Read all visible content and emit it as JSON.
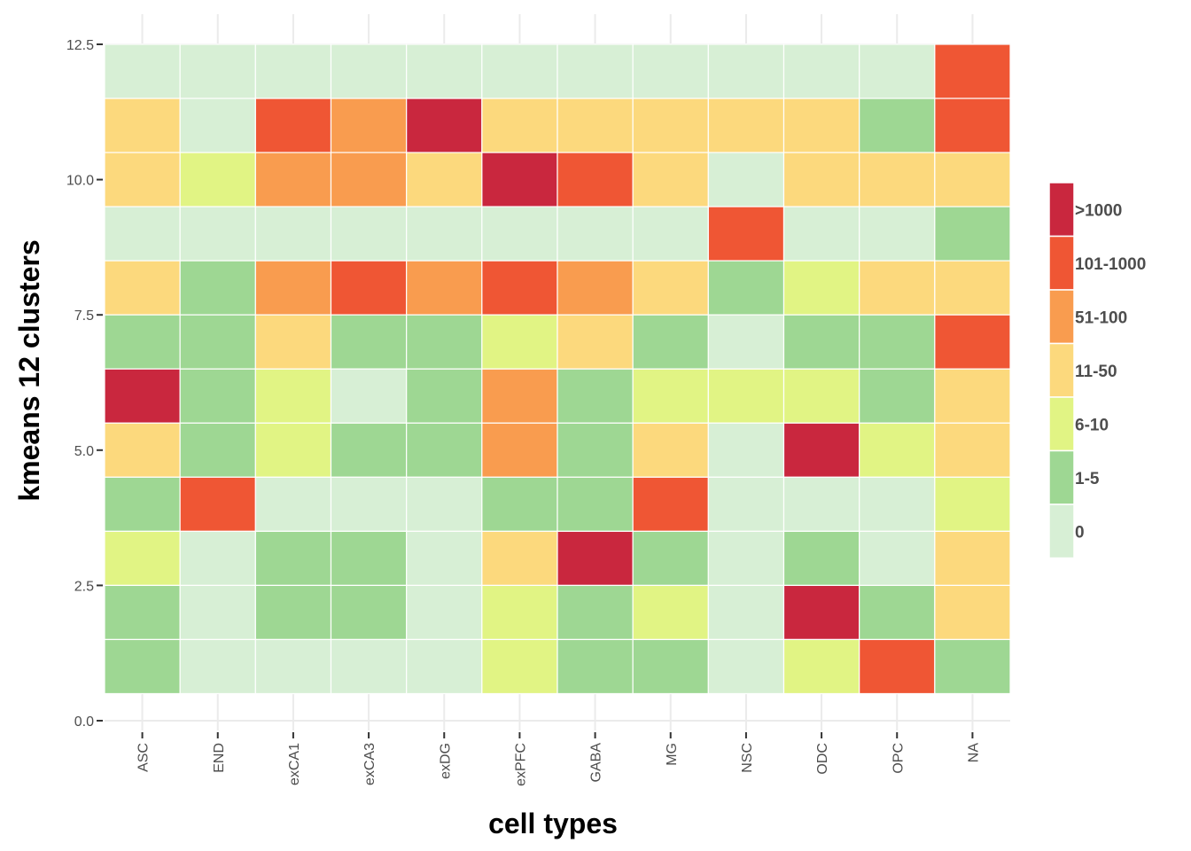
{
  "chart_data": {
    "type": "heatmap",
    "title": "",
    "xlabel": "cell types",
    "ylabel": "kmeans 12 clusters",
    "x_categories": [
      "ASC",
      "END",
      "exCA1",
      "exCA3",
      "exDG",
      "exPFC",
      "GABA",
      "MG",
      "NSC",
      "ODC",
      "OPC",
      "NA"
    ],
    "y_ticks": [
      0.0,
      2.5,
      5.0,
      7.5,
      10.0,
      12.5
    ],
    "y_tick_labels": [
      "0.0",
      "2.5",
      "5.0",
      "7.5",
      "10.0",
      "12.5"
    ],
    "ylim": [
      0,
      12.5
    ],
    "grid": true,
    "legend_position": "right",
    "legend": [
      {
        "label": ">1000",
        "color": "#c9273e"
      },
      {
        "label": "101-1000",
        "color": "#ef5634"
      },
      {
        "label": "51-100",
        "color": "#f99c4f"
      },
      {
        "label": "11-50",
        "color": "#fcd97d"
      },
      {
        "label": "6-10",
        "color": "#e1f484"
      },
      {
        "label": "1-5",
        "color": "#9ed793"
      },
      {
        "label": "0",
        "color": "#d7efd5"
      }
    ],
    "rows": [
      {
        "cluster": 12,
        "values": [
          "0",
          "0",
          "0",
          "0",
          "0",
          "0",
          "0",
          "0",
          "0",
          "0",
          "0",
          "101-1000"
        ]
      },
      {
        "cluster": 11,
        "values": [
          "11-50",
          "0",
          "101-1000",
          "51-100",
          ">1000",
          "11-50",
          "11-50",
          "11-50",
          "11-50",
          "11-50",
          "1-5",
          "101-1000"
        ]
      },
      {
        "cluster": 10,
        "values": [
          "11-50",
          "6-10",
          "51-100",
          "51-100",
          "11-50",
          ">1000",
          "101-1000",
          "11-50",
          "0",
          "11-50",
          "11-50",
          "11-50"
        ]
      },
      {
        "cluster": 9,
        "values": [
          "0",
          "0",
          "0",
          "0",
          "0",
          "0",
          "0",
          "0",
          "101-1000",
          "0",
          "0",
          "1-5"
        ]
      },
      {
        "cluster": 8,
        "values": [
          "11-50",
          "1-5",
          "51-100",
          "101-1000",
          "51-100",
          "101-1000",
          "51-100",
          "11-50",
          "1-5",
          "6-10",
          "11-50",
          "11-50"
        ]
      },
      {
        "cluster": 7,
        "values": [
          "1-5",
          "1-5",
          "11-50",
          "1-5",
          "1-5",
          "6-10",
          "11-50",
          "1-5",
          "0",
          "1-5",
          "1-5",
          "101-1000"
        ]
      },
      {
        "cluster": 6,
        "values": [
          ">1000",
          "1-5",
          "6-10",
          "0",
          "1-5",
          "51-100",
          "1-5",
          "6-10",
          "6-10",
          "6-10",
          "1-5",
          "11-50"
        ]
      },
      {
        "cluster": 5,
        "values": [
          "11-50",
          "1-5",
          "6-10",
          "1-5",
          "1-5",
          "51-100",
          "1-5",
          "11-50",
          "0",
          ">1000",
          "6-10",
          "11-50"
        ]
      },
      {
        "cluster": 4,
        "values": [
          "1-5",
          "101-1000",
          "0",
          "0",
          "0",
          "1-5",
          "1-5",
          "101-1000",
          "0",
          "0",
          "0",
          "6-10"
        ]
      },
      {
        "cluster": 3,
        "values": [
          "6-10",
          "0",
          "1-5",
          "1-5",
          "0",
          "11-50",
          ">1000",
          "1-5",
          "0",
          "1-5",
          "0",
          "11-50"
        ]
      },
      {
        "cluster": 2,
        "values": [
          "1-5",
          "0",
          "1-5",
          "1-5",
          "0",
          "6-10",
          "1-5",
          "6-10",
          "0",
          ">1000",
          "1-5",
          "11-50"
        ]
      },
      {
        "cluster": 1,
        "values": [
          "1-5",
          "0",
          "0",
          "0",
          "0",
          "6-10",
          "1-5",
          "1-5",
          "0",
          "6-10",
          "101-1000",
          "1-5"
        ]
      }
    ]
  }
}
